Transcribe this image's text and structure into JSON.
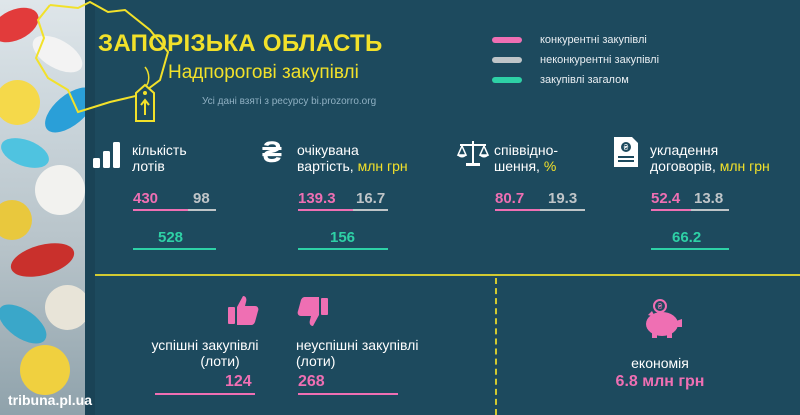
{
  "header": {
    "title": "ЗАПОРІЗЬКА ОБЛАСТЬ",
    "subtitle": "Надпорогові закупівлі",
    "source": "Усі дані взяті з ресурсу bi.prozorro.org"
  },
  "legend": [
    {
      "label": "конкурентні закупівлі",
      "color": "#ef6fb3"
    },
    {
      "label": "неконкурентні закупівлі",
      "color": "#bfc5c8"
    },
    {
      "label": "закупівлі загалом",
      "color": "#2ed1a6"
    }
  ],
  "stats": {
    "lots": {
      "label_line1": "кількість",
      "label_line2": "лотів",
      "competitive": "430",
      "noncompetitive": "98",
      "total": "528",
      "icon": "bar-chart-icon"
    },
    "value": {
      "label_line1": "очікувана",
      "label_line2": "вартість,",
      "unit": "млн грн",
      "competitive": "139.3",
      "noncompetitive": "16.7",
      "total": "156",
      "icon": "hryvnia-icon"
    },
    "ratio": {
      "label_line1": "співвідно-",
      "label_line2": "шення,",
      "unit": "%",
      "competitive": "80.7",
      "noncompetitive": "19.3",
      "icon": "scales-icon"
    },
    "contracts": {
      "label_line1": "укладення",
      "label_line2": "договорів,",
      "unit": "млн грн",
      "competitive": "52.4",
      "noncompetitive": "13.8",
      "total": "66.2",
      "icon": "contract-document-icon"
    }
  },
  "bottom": {
    "successful": {
      "label_line1": "успішні  закупівлі",
      "label_line2": "(лоти)",
      "value": "124",
      "icon": "thumbs-up-icon"
    },
    "unsuccessful": {
      "label_line1": "неуспішні закупівлі",
      "label_line2": "(лоти)",
      "value": "268",
      "icon": "thumbs-down-icon"
    },
    "savings": {
      "label": "економія",
      "value": "6.8 млн грн",
      "icon": "piggy-bank-icon"
    }
  },
  "footer": "tribuna.pl.ua",
  "colors": {
    "background": "#1d4a5e",
    "accent": "#f2e12a",
    "competitive": "#ef6fb3",
    "noncompetitive": "#bfc5c8",
    "total": "#2ed1a6"
  }
}
